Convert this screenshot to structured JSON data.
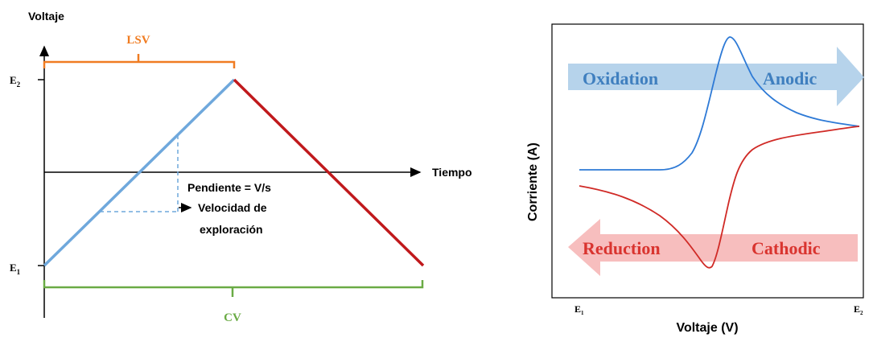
{
  "left_panel": {
    "y_axis_label": "Voltaje",
    "x_axis_label": "Tiempo",
    "e2_label_main": "E",
    "e2_label_sub": "2",
    "e1_label_main": "E",
    "e1_label_sub": "1",
    "lsv_label": "LSV",
    "cv_label": "CV",
    "slope_label": "Pendiente = V/s",
    "speed_label_line1": "Velocidad de",
    "speed_label_line2": "exploración",
    "colors": {
      "lsv_bracket": "#f07c22",
      "cv_bracket": "#6aab45",
      "forward_sweep": "#6fa8dc",
      "reverse_sweep": "#c0191c",
      "axis": "#000000"
    }
  },
  "right_panel": {
    "y_axis_label": "Corriente (A)",
    "x_axis_label": "Voltaje (V)",
    "e1_label_main": "E",
    "e1_label_sub": "1",
    "e2_label_main": "E",
    "e2_label_sub": "2",
    "oxidation_label": "Oxidation",
    "anodic_label": "Anodic",
    "reduction_label": "Reduction",
    "cathodic_label": "Cathodic",
    "colors": {
      "oxidation_arrow": "#a9cbe8",
      "oxidation_text": "#3f7fbf",
      "reduction_arrow": "#f6b3b3",
      "reduction_text": "#d9342f",
      "anodic_curve": "#2e7ad6",
      "cathodic_curve": "#d02a26"
    }
  }
}
